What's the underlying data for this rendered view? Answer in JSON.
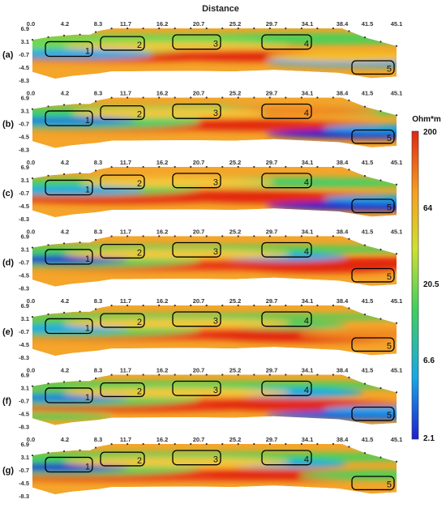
{
  "figure": {
    "title": "Distance",
    "colorbar": {
      "unit_label": "Ohm*m",
      "tick_labels": [
        "200",
        "64",
        "20.5",
        "6.6",
        "2.1"
      ],
      "colors": [
        "#1f1fd0",
        "#16a8e8",
        "#3fd060",
        "#cfe030",
        "#f8a020",
        "#e02810"
      ]
    }
  },
  "chart_data": {
    "type": "heatmap",
    "x_tick_labels": [
      "0.0",
      "4.2",
      "8.3",
      "11.7",
      "16.2",
      "20.7",
      "25.2",
      "29.7",
      "34.1",
      "38.4",
      "41.5",
      "45.1"
    ],
    "x_tick_values": [
      0.0,
      4.2,
      8.3,
      11.7,
      16.2,
      20.7,
      25.2,
      29.7,
      34.1,
      38.4,
      41.5,
      45.1
    ],
    "xlim": [
      0.0,
      45.1
    ],
    "y_tick_labels": [
      "6.9",
      "3.1",
      "-0.7",
      "-4.5",
      "-8.3"
    ],
    "ylim": [
      -8.3,
      6.9
    ],
    "colorscale": "log",
    "value_range": [
      2.1,
      200
    ],
    "zone_labels": [
      "1",
      "2",
      "3",
      "4",
      "5"
    ],
    "zones": [
      {
        "label": "1",
        "x_range": [
          1.8,
          7.6
        ],
        "y_range": [
          -1.3,
          3.0
        ]
      },
      {
        "label": "2",
        "x_range": [
          8.6,
          14.0
        ],
        "y_range": [
          0.5,
          4.5
        ]
      },
      {
        "label": "3",
        "x_range": [
          17.5,
          23.4
        ],
        "y_range": [
          0.8,
          5.0
        ]
      },
      {
        "label": "4",
        "x_range": [
          28.5,
          34.6
        ],
        "y_range": [
          0.8,
          5.0
        ]
      },
      {
        "label": "5",
        "x_range": [
          39.6,
          44.8
        ],
        "y_range": [
          -6.5,
          -2.6
        ]
      }
    ],
    "panels": [
      {
        "label": "(a)"
      },
      {
        "label": "(b)"
      },
      {
        "label": "(c)"
      },
      {
        "label": "(d)"
      },
      {
        "label": "(e)"
      },
      {
        "label": "(f)"
      },
      {
        "label": "(g)"
      }
    ]
  }
}
